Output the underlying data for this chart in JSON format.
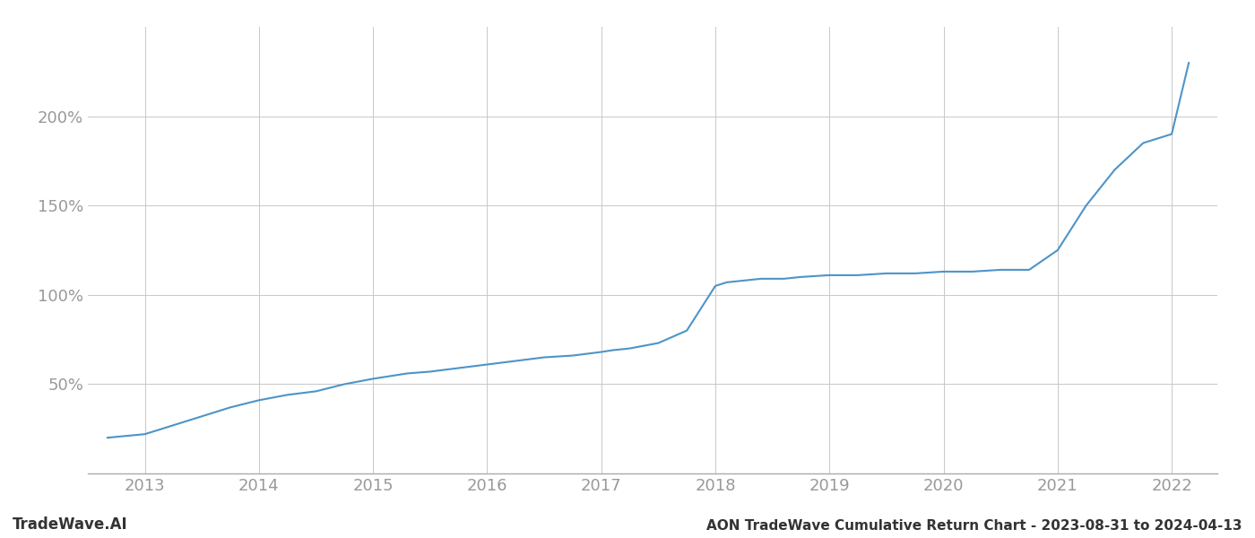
{
  "title": "AON TradeWave Cumulative Return Chart - 2023-08-31 to 2024-04-13",
  "watermark": "TradeWave.AI",
  "line_color": "#4d94c8",
  "background_color": "#ffffff",
  "grid_color": "#c8c8c8",
  "x_years": [
    2013,
    2014,
    2015,
    2016,
    2017,
    2018,
    2019,
    2020,
    2021,
    2022
  ],
  "data_x": [
    2012.67,
    2013.0,
    2013.2,
    2013.5,
    2013.75,
    2014.0,
    2014.25,
    2014.5,
    2014.75,
    2015.0,
    2015.1,
    2015.3,
    2015.5,
    2015.75,
    2016.0,
    2016.25,
    2016.5,
    2016.75,
    2017.0,
    2017.1,
    2017.25,
    2017.5,
    2017.75,
    2018.0,
    2018.1,
    2018.25,
    2018.4,
    2018.6,
    2018.75,
    2019.0,
    2019.25,
    2019.5,
    2019.75,
    2020.0,
    2020.25,
    2020.5,
    2020.75,
    2021.0,
    2021.25,
    2021.5,
    2021.75,
    2022.0,
    2022.15
  ],
  "data_y": [
    20,
    22,
    26,
    32,
    37,
    41,
    44,
    46,
    50,
    53,
    54,
    56,
    57,
    59,
    61,
    63,
    65,
    66,
    68,
    69,
    70,
    73,
    80,
    105,
    107,
    108,
    109,
    109,
    110,
    111,
    111,
    112,
    112,
    113,
    113,
    114,
    114,
    125,
    150,
    170,
    185,
    190,
    230
  ],
  "ylim": [
    0,
    250
  ],
  "yticks": [
    50,
    100,
    150,
    200
  ],
  "xlim": [
    2012.5,
    2022.4
  ],
  "title_fontsize": 11,
  "watermark_fontsize": 12,
  "tick_fontsize": 13,
  "label_color": "#999999",
  "title_color": "#333333"
}
